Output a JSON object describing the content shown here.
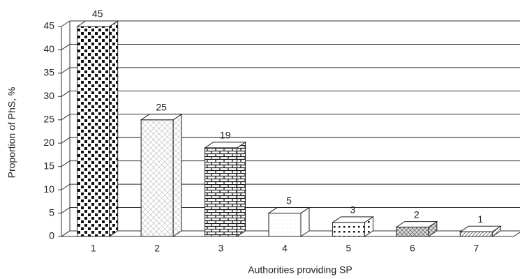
{
  "chart_data": {
    "type": "bar3d",
    "x_label": "Authorities providing SP",
    "y_label": "Proportion of PhS, %",
    "categories": [
      "1",
      "2",
      "3",
      "4",
      "5",
      "6",
      "7"
    ],
    "values": [
      45,
      25,
      19,
      5,
      3,
      2,
      1
    ],
    "ylim": [
      0,
      45
    ],
    "yticks": [
      0,
      5,
      10,
      15,
      20,
      25,
      30,
      35,
      40,
      45
    ],
    "grid": true
  }
}
